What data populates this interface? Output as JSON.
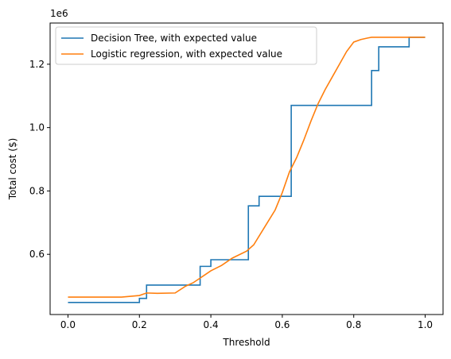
{
  "chart_data": {
    "type": "line",
    "title": "",
    "xlabel": "Threshold",
    "ylabel": "Total cost ($)",
    "y_offset_label": "1e6",
    "xlim": [
      -0.05,
      1.05
    ],
    "ylim": [
      410000,
      1330000
    ],
    "x_ticks": [
      0.0,
      0.2,
      0.4,
      0.6,
      0.8,
      1.0
    ],
    "x_tick_labels": [
      "0.0",
      "0.2",
      "0.4",
      "0.6",
      "0.8",
      "1.0"
    ],
    "y_ticks": [
      600000,
      800000,
      1000000,
      1200000
    ],
    "y_tick_labels": [
      "0.6",
      "0.8",
      "1.0",
      "1.2"
    ],
    "grid": false,
    "legend_position": "top-left",
    "series": [
      {
        "name": "Decision Tree, with expected value",
        "color": "#1f77b4",
        "step": true,
        "x": [
          0.0,
          0.2,
          0.22,
          0.29,
          0.37,
          0.4,
          0.505,
          0.535,
          0.625,
          0.85,
          0.87,
          0.955,
          1.0
        ],
        "y": [
          448000,
          461000,
          503000,
          503000,
          562000,
          583000,
          753000,
          783000,
          1070000,
          1180000,
          1255000,
          1285000,
          1285000
        ]
      },
      {
        "name": "Logistic regression, with expected value",
        "color": "#ff7f0e",
        "step": false,
        "x": [
          0.0,
          0.15,
          0.2,
          0.22,
          0.25,
          0.3,
          0.33,
          0.35,
          0.37,
          0.4,
          0.43,
          0.46,
          0.5,
          0.52,
          0.55,
          0.58,
          0.6,
          0.62,
          0.64,
          0.66,
          0.68,
          0.7,
          0.72,
          0.74,
          0.76,
          0.78,
          0.8,
          0.82,
          0.84,
          0.85,
          0.9,
          1.0
        ],
        "y": [
          465000,
          465000,
          470000,
          478000,
          477000,
          478000,
          500000,
          510000,
          525000,
          548000,
          565000,
          588000,
          610000,
          630000,
          685000,
          740000,
          795000,
          860000,
          905000,
          960000,
          1020000,
          1075000,
          1120000,
          1160000,
          1200000,
          1240000,
          1270000,
          1278000,
          1283000,
          1285000,
          1285000,
          1285000
        ]
      }
    ]
  }
}
